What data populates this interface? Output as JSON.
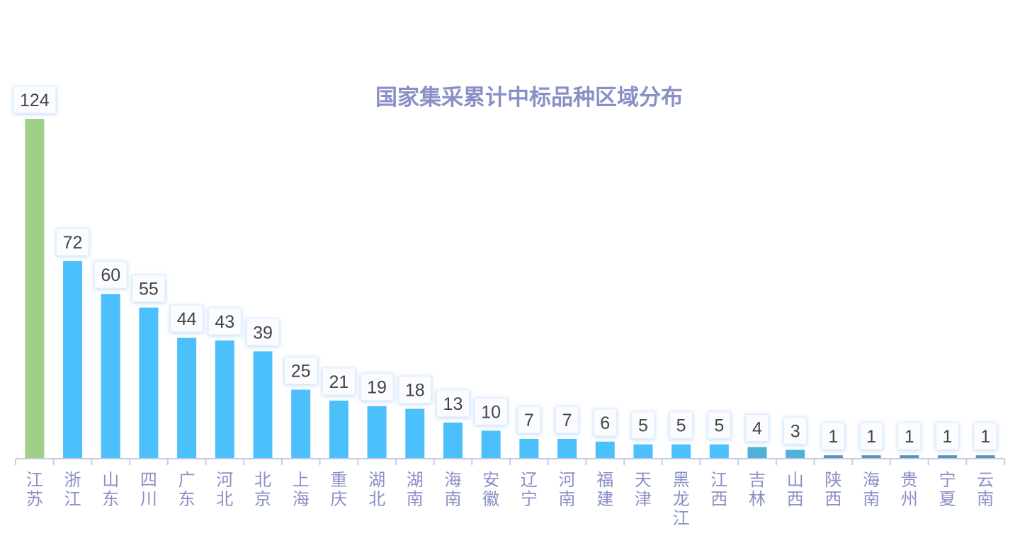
{
  "chart_data": {
    "type": "bar",
    "title": "国家集采累计中标品种区域分布",
    "xlabel": "",
    "ylabel": "",
    "ylim": [
      0,
      124
    ],
    "grid": false,
    "categories": [
      "江苏",
      "浙江",
      "山东",
      "四川",
      "广东",
      "河北",
      "北京",
      "上海",
      "重庆",
      "湖北",
      "湖南",
      "海南",
      "安徽",
      "辽宁",
      "河南",
      "福建",
      "天津",
      "黑龙江",
      "江西",
      "吉林",
      "山西",
      "陕西",
      "海南",
      "贵州",
      "宁夏",
      "云南"
    ],
    "values": [
      124,
      72,
      60,
      55,
      44,
      43,
      39,
      25,
      21,
      19,
      18,
      13,
      10,
      7,
      7,
      6,
      5,
      5,
      5,
      4,
      3,
      1,
      1,
      1,
      1,
      1
    ],
    "colors": {
      "top": "#9fd08a",
      "mid": "#4cc0fa",
      "low": "#4fb0d8",
      "min": "#5a93b3",
      "axis": "#c9cbe4"
    }
  }
}
